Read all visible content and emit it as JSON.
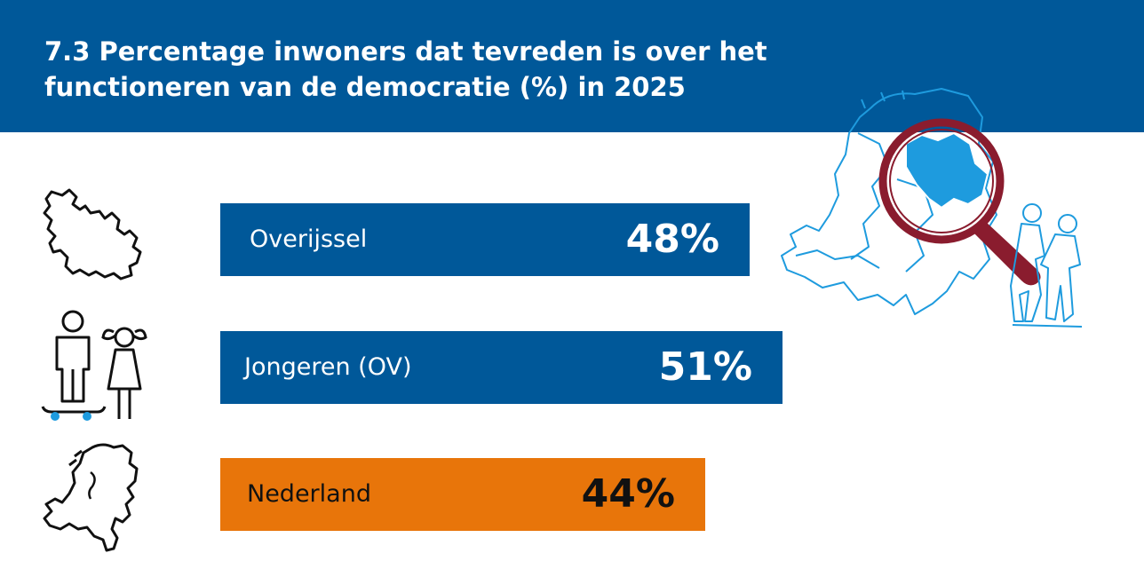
{
  "colors": {
    "header_bg": "#005899",
    "bar_blue": "#005899",
    "bar_orange": "#E8750A",
    "text_light": "#FFFFFF",
    "text_dark": "#111111",
    "accent_light_blue": "#1E9BDE",
    "magnifier_red": "#8A1C2E"
  },
  "header": {
    "title": "7.3 Percentage inwoners dat tevreden is over het functioneren van de democratie (%) in 2025"
  },
  "icons": {
    "row1": "overijssel-map-icon",
    "row2": "youth-boy-girl-icon",
    "row3": "netherlands-map-icon",
    "illustration": "netherlands-magnifier-illustration"
  },
  "chart_data": {
    "type": "bar",
    "orientation": "horizontal",
    "title": "7.3 Percentage inwoners dat tevreden is over het functioneren van de democratie (%) in 2025",
    "categories": [
      "Overijssel",
      "Jongeren (OV)",
      "Nederland"
    ],
    "values": [
      48,
      51,
      44
    ],
    "value_labels": [
      "48%",
      "51%",
      "44%"
    ],
    "unit": "%",
    "bar_colors": [
      "#005899",
      "#005899",
      "#E8750A"
    ],
    "label_colors": [
      "#FFFFFF",
      "#FFFFFF",
      "#111111"
    ],
    "xlim": [
      0,
      100
    ],
    "grid": false,
    "legend": "none"
  }
}
